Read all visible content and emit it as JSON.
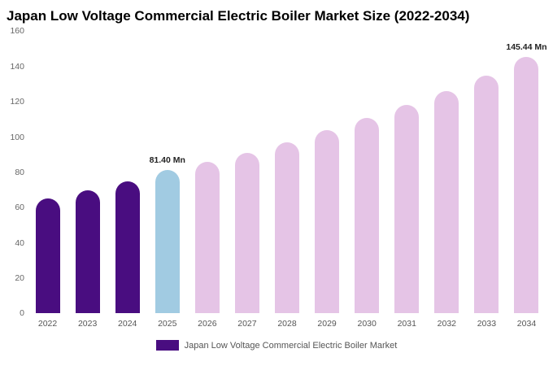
{
  "title": "Japan Low Voltage Commercial Electric Boiler Market Size (2022-2034)",
  "legend": {
    "label": "Japan Low Voltage Commercial Electric Boiler Market",
    "color": "#490D80"
  },
  "chart_data": {
    "type": "bar",
    "title": "Japan Low Voltage Commercial Electric Boiler Market Size (2022-2034)",
    "categories": [
      "2022",
      "2023",
      "2024",
      "2025",
      "2026",
      "2027",
      "2028",
      "2029",
      "2030",
      "2031",
      "2032",
      "2033",
      "2034"
    ],
    "values": [
      65,
      70,
      75,
      81.4,
      86,
      91,
      97,
      104,
      111,
      118,
      126,
      135,
      145.44
    ],
    "unit": "Mn",
    "xlabel": "",
    "ylabel": "",
    "ylim": [
      0,
      160
    ],
    "yticks": [
      0,
      20,
      40,
      60,
      80,
      100,
      120,
      140,
      160
    ],
    "grid": false,
    "legend_position": "bottom",
    "bar_colors": [
      "#490D80",
      "#490D80",
      "#490D80",
      "#A1CBE2",
      "#E5C4E6",
      "#E5C4E6",
      "#E5C4E6",
      "#E5C4E6",
      "#E5C4E6",
      "#E5C4E6",
      "#E5C4E6",
      "#E5C4E6",
      "#E5C4E6"
    ],
    "annotations": [
      {
        "category": "2025",
        "text": "81.40 Mn"
      },
      {
        "category": "2034",
        "text": "145.44 Mn"
      }
    ]
  }
}
